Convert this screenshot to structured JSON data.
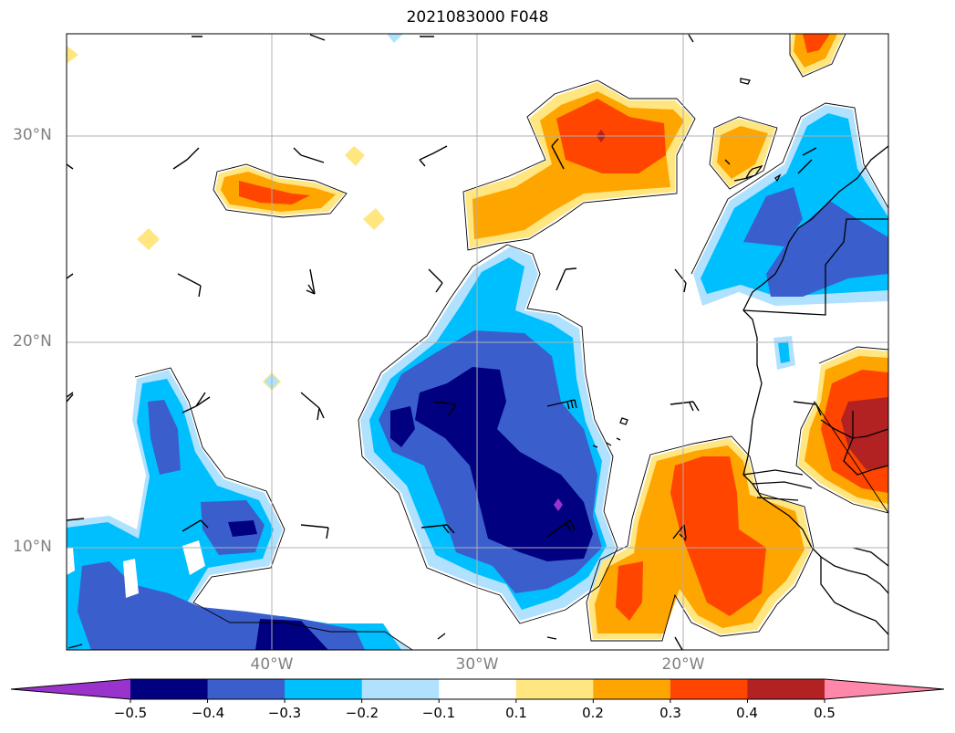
{
  "title": "2021083000 F048",
  "lat_labels": [
    "30°N",
    "20°N",
    "10°N"
  ],
  "lon_labels": [
    "40°W",
    "30°W",
    "20°W"
  ],
  "colorbar": {
    "ticks": [
      "−0.5",
      "−0.4",
      "−0.3",
      "−0.2",
      "−0.1",
      "0.1",
      "0.2",
      "0.3",
      "0.4",
      "0.5"
    ],
    "colors": [
      "#9933cc",
      "#000080",
      "#3a5fcd",
      "#00bfff",
      "#b0e2ff",
      "#ffffff",
      "#ffe680",
      "#ffa500",
      "#ff4500",
      "#b22222",
      "#ff88aa"
    ]
  }
}
